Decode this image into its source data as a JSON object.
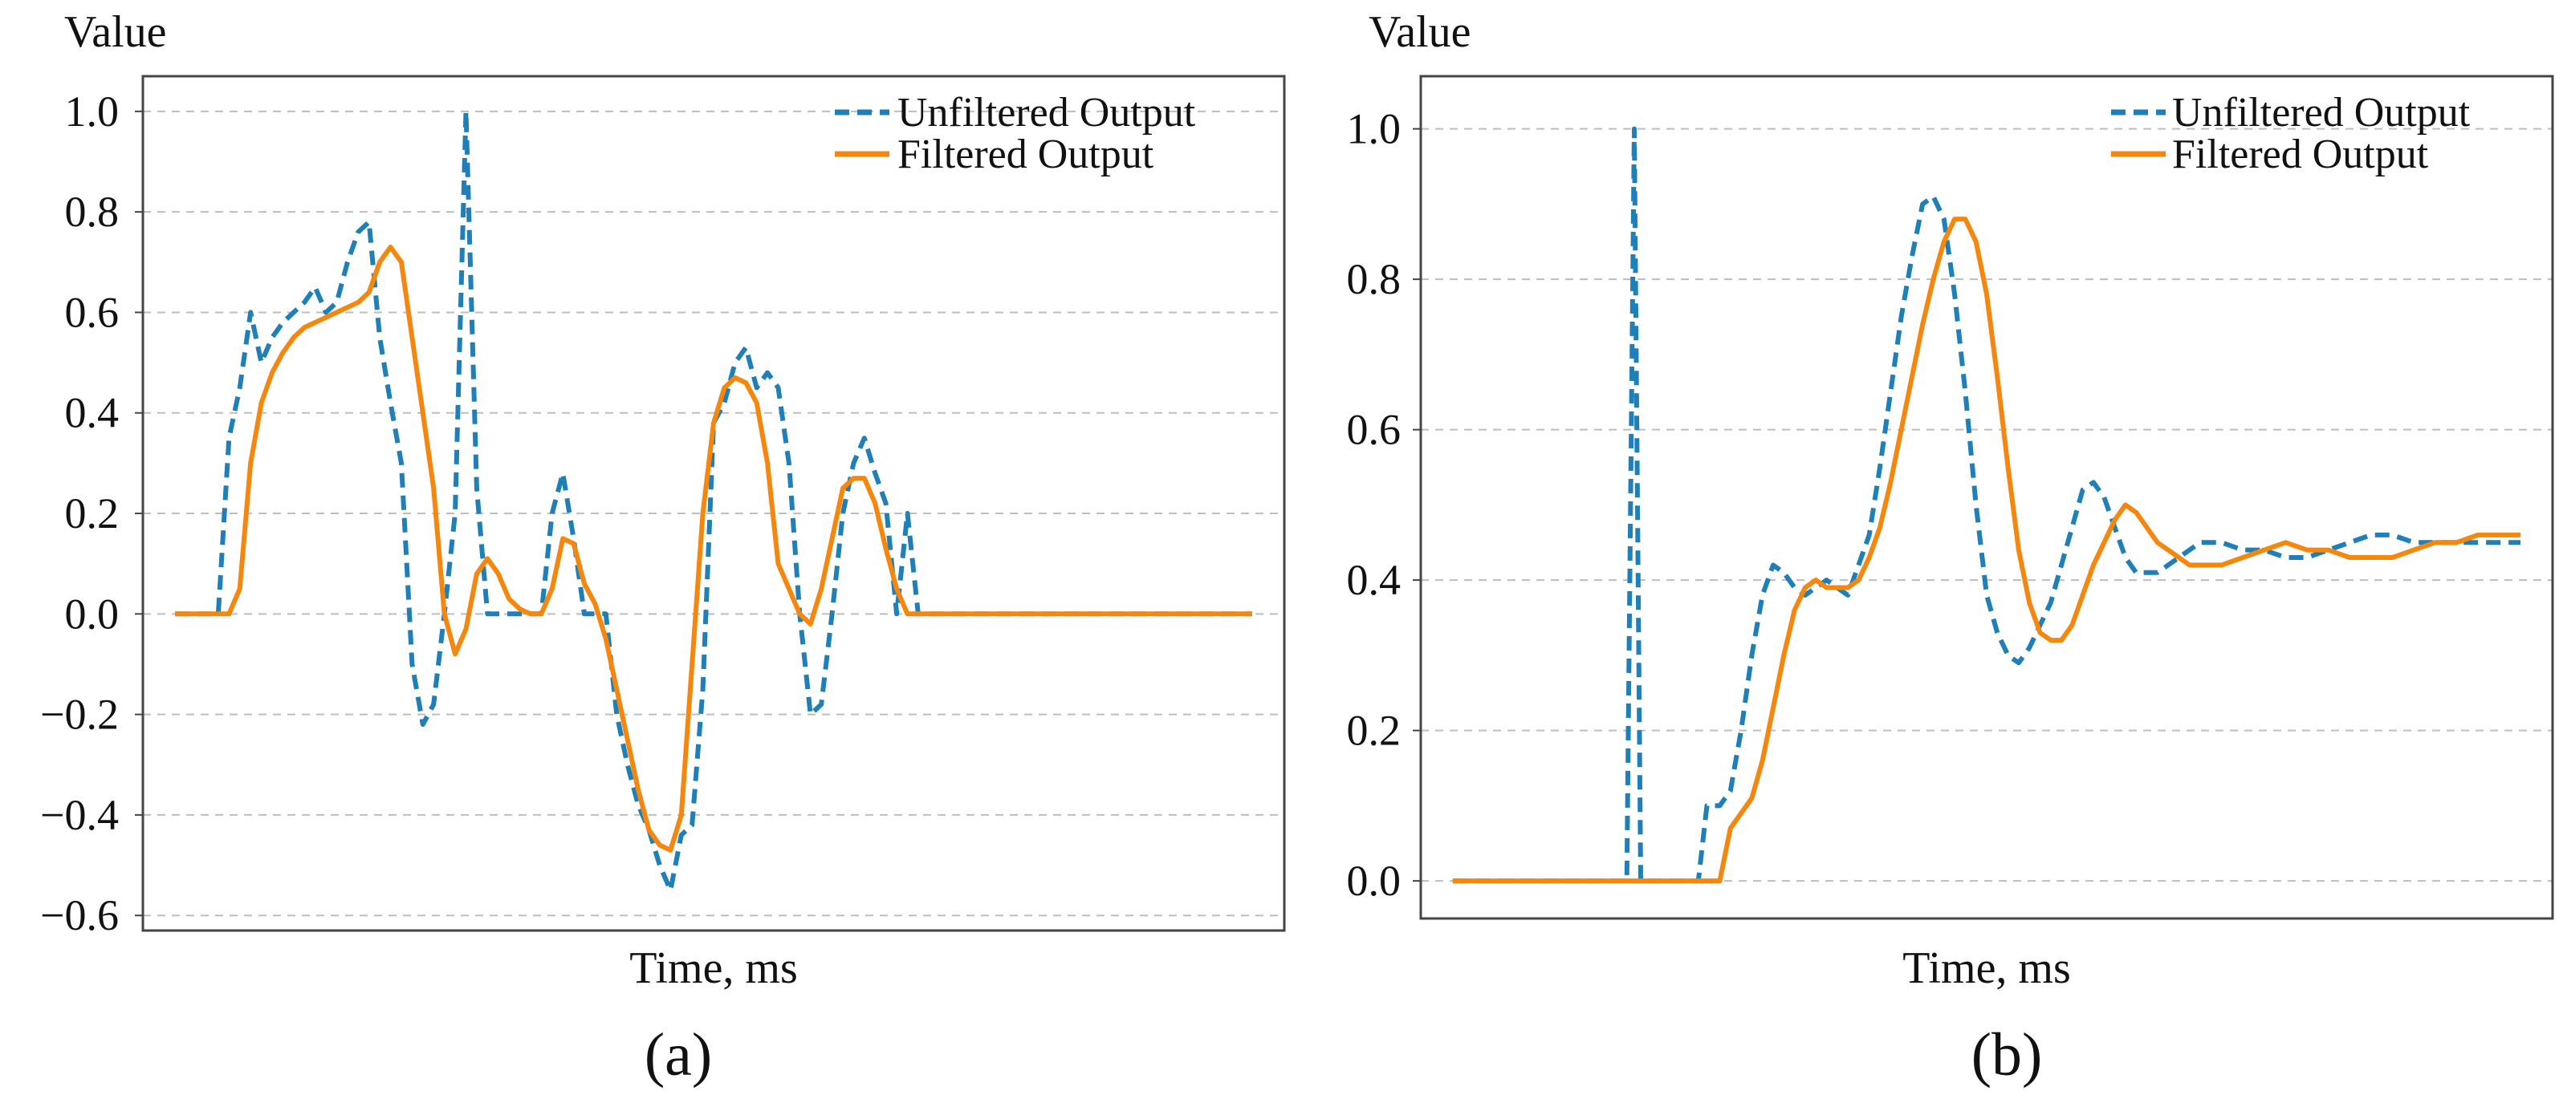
{
  "colors": {
    "unfiltered": "#1f7fb8",
    "filtered": "#f5870f",
    "grid": "#bdbdbd",
    "frame": "#444444"
  },
  "chart_data": [
    {
      "type": "line",
      "panel_label": "(a)",
      "ylabel": "Value",
      "xlabel": "Time, ms",
      "x_ticks_shown": false,
      "grid": "horizontal-dashed",
      "legend_position": "top-right",
      "xlim": [
        -3,
        103
      ],
      "ylim": [
        -0.63,
        1.07
      ],
      "yticks": [
        -0.6,
        -0.4,
        -0.2,
        0.0,
        0.2,
        0.4,
        0.6,
        0.8,
        1.0
      ],
      "ytick_labels": [
        "−0.6",
        "−0.4",
        "−0.2",
        "0.0",
        "0.2",
        "0.4",
        "0.6",
        "0.8",
        "1.0"
      ],
      "series": [
        {
          "name": "Unfiltered Output",
          "style": "dashed",
          "x": [
            0,
            4,
            5,
            6,
            7,
            8,
            9,
            10,
            11,
            12,
            13,
            14,
            15,
            16,
            17,
            18,
            19,
            20,
            21,
            22,
            23,
            24,
            25,
            26,
            27,
            28,
            29,
            30,
            31,
            32,
            33,
            34,
            35,
            36,
            37,
            38,
            39,
            40,
            41,
            42,
            43,
            44,
            45,
            46,
            47,
            48,
            49,
            50,
            51,
            52,
            53,
            54,
            55,
            56,
            57,
            58,
            59,
            60,
            61,
            62,
            63,
            64,
            65,
            66,
            67,
            68,
            69,
            70,
            71,
            72,
            73,
            74,
            75,
            76,
            77,
            78,
            79,
            80,
            81,
            82,
            83,
            84,
            85,
            86,
            87,
            88,
            89,
            90,
            91,
            92,
            100
          ],
          "y": [
            0.0,
            0.0,
            0.35,
            0.45,
            0.6,
            0.5,
            0.55,
            0.58,
            0.6,
            0.62,
            0.65,
            0.6,
            0.62,
            0.7,
            0.76,
            0.78,
            0.55,
            0.42,
            0.3,
            -0.1,
            -0.22,
            -0.18,
            0.0,
            0.2,
            1.0,
            0.25,
            0.0,
            0.0,
            0.0,
            0.0,
            0.0,
            0.0,
            0.2,
            0.28,
            0.15,
            0.0,
            0.0,
            0.0,
            -0.2,
            -0.3,
            -0.38,
            -0.43,
            -0.5,
            -0.55,
            -0.44,
            -0.42,
            -0.15,
            0.38,
            0.42,
            0.5,
            0.53,
            0.45,
            0.48,
            0.45,
            0.3,
            0.0,
            -0.2,
            -0.18,
            0.0,
            0.2,
            0.3,
            0.35,
            0.28,
            0.22,
            0.0,
            0.2,
            0.0,
            0.0,
            0.0,
            0.0,
            0.0,
            0.0,
            0.0,
            0.0,
            0.0,
            0.0,
            0.0,
            0.0,
            0.0,
            0.0,
            0.0,
            0.0,
            0.0,
            0.0,
            0.0,
            0.0,
            0.0,
            0.0,
            0.0,
            0.0,
            0.0
          ]
        },
        {
          "name": "Filtered Output",
          "style": "solid",
          "x": [
            0,
            5,
            6,
            7,
            8,
            9,
            10,
            11,
            12,
            13,
            14,
            15,
            16,
            17,
            18,
            19,
            20,
            21,
            22,
            23,
            24,
            25,
            26,
            27,
            28,
            29,
            30,
            31,
            32,
            33,
            34,
            35,
            36,
            37,
            38,
            39,
            40,
            41,
            42,
            43,
            44,
            45,
            46,
            47,
            48,
            49,
            50,
            51,
            52,
            53,
            54,
            55,
            56,
            57,
            58,
            59,
            60,
            61,
            62,
            63,
            64,
            65,
            66,
            67,
            68,
            69,
            70,
            71,
            72,
            73,
            74,
            75,
            76,
            77,
            78,
            79,
            80,
            81,
            82,
            83,
            84,
            85,
            86,
            87,
            88,
            89,
            90,
            91,
            92,
            93,
            94,
            95,
            96,
            97,
            98,
            99,
            100
          ],
          "y": [
            0.0,
            0.0,
            0.05,
            0.3,
            0.42,
            0.48,
            0.52,
            0.55,
            0.57,
            0.58,
            0.59,
            0.6,
            0.61,
            0.62,
            0.64,
            0.7,
            0.73,
            0.7,
            0.55,
            0.4,
            0.25,
            0.0,
            -0.08,
            -0.03,
            0.08,
            0.11,
            0.08,
            0.03,
            0.01,
            0.0,
            0.0,
            0.05,
            0.15,
            0.14,
            0.06,
            0.02,
            -0.05,
            -0.15,
            -0.25,
            -0.35,
            -0.43,
            -0.46,
            -0.47,
            -0.4,
            -0.1,
            0.2,
            0.38,
            0.45,
            0.47,
            0.46,
            0.42,
            0.3,
            0.1,
            0.05,
            0.0,
            -0.02,
            0.05,
            0.15,
            0.25,
            0.27,
            0.27,
            0.22,
            0.13,
            0.05,
            0.0,
            0.0,
            0.0,
            0.0,
            0.0,
            0.0,
            0.0,
            0.0,
            0.0,
            0.0,
            0.0,
            0.0,
            0.0,
            0.0,
            0.0,
            0.0,
            0.0,
            0.0,
            0.0,
            0.0,
            0.0,
            0.0,
            0.0,
            0.0,
            0.0,
            0.0,
            0.0,
            0.0,
            0.0,
            0.0,
            0.0,
            0.0,
            0.0
          ]
        }
      ]
    },
    {
      "type": "line",
      "panel_label": "(b)",
      "ylabel": "Value",
      "xlabel": "Time, ms",
      "x_ticks_shown": false,
      "grid": "horizontal-dashed",
      "legend_position": "top-right",
      "xlim": [
        -3,
        103
      ],
      "ylim": [
        -0.05,
        1.07
      ],
      "yticks": [
        0.0,
        0.2,
        0.4,
        0.6,
        0.8,
        1.0
      ],
      "ytick_labels": [
        "0.0",
        "0.2",
        "0.4",
        "0.6",
        "0.8",
        "1.0"
      ],
      "series": [
        {
          "name": "Unfiltered Output",
          "style": "dashed",
          "x": [
            0,
            16.3,
            17,
            17.6,
            23,
            23.8,
            25,
            26,
            27,
            28,
            29,
            30,
            31,
            32,
            33,
            34,
            35,
            36,
            37,
            38,
            39,
            40,
            41,
            42,
            43,
            44,
            45,
            46,
            47,
            48,
            49,
            50,
            51,
            52,
            53,
            54,
            55,
            56,
            57,
            58,
            59,
            60,
            61,
            62,
            63,
            64,
            65,
            66,
            67,
            68,
            69,
            70,
            72,
            74,
            76,
            78,
            80,
            82,
            84,
            86,
            88,
            90,
            92,
            94,
            96,
            98,
            100
          ],
          "y": [
            0.0,
            0.0,
            1.0,
            0.0,
            0.0,
            0.1,
            0.1,
            0.12,
            0.2,
            0.3,
            0.38,
            0.42,
            0.41,
            0.39,
            0.38,
            0.39,
            0.4,
            0.39,
            0.38,
            0.42,
            0.46,
            0.55,
            0.65,
            0.75,
            0.83,
            0.9,
            0.91,
            0.88,
            0.78,
            0.65,
            0.5,
            0.38,
            0.33,
            0.3,
            0.29,
            0.31,
            0.34,
            0.37,
            0.42,
            0.47,
            0.52,
            0.53,
            0.51,
            0.47,
            0.43,
            0.41,
            0.41,
            0.41,
            0.42,
            0.43,
            0.44,
            0.45,
            0.45,
            0.44,
            0.44,
            0.43,
            0.43,
            0.44,
            0.45,
            0.46,
            0.46,
            0.45,
            0.45,
            0.45,
            0.45,
            0.45,
            0.45
          ]
        },
        {
          "name": "Filtered Output",
          "style": "solid",
          "x": [
            0,
            25,
            26,
            27,
            28,
            29,
            30,
            31,
            32,
            33,
            34,
            35,
            36,
            37,
            38,
            39,
            40,
            41,
            42,
            43,
            44,
            45,
            46,
            47,
            48,
            49,
            50,
            51,
            52,
            53,
            54,
            55,
            56,
            57,
            58,
            59,
            60,
            61,
            62,
            63,
            64,
            65,
            66,
            67,
            68,
            69,
            70,
            72,
            74,
            76,
            78,
            80,
            82,
            84,
            86,
            88,
            90,
            92,
            94,
            96,
            98,
            100
          ],
          "y": [
            0.0,
            0.0,
            0.07,
            0.09,
            0.11,
            0.16,
            0.23,
            0.3,
            0.36,
            0.39,
            0.4,
            0.39,
            0.39,
            0.39,
            0.4,
            0.43,
            0.47,
            0.53,
            0.6,
            0.67,
            0.74,
            0.8,
            0.85,
            0.88,
            0.88,
            0.85,
            0.78,
            0.67,
            0.55,
            0.44,
            0.37,
            0.33,
            0.32,
            0.32,
            0.34,
            0.38,
            0.42,
            0.45,
            0.48,
            0.5,
            0.49,
            0.47,
            0.45,
            0.44,
            0.43,
            0.42,
            0.42,
            0.42,
            0.43,
            0.44,
            0.45,
            0.44,
            0.44,
            0.43,
            0.43,
            0.43,
            0.44,
            0.45,
            0.45,
            0.46,
            0.46,
            0.46
          ]
        }
      ]
    }
  ]
}
